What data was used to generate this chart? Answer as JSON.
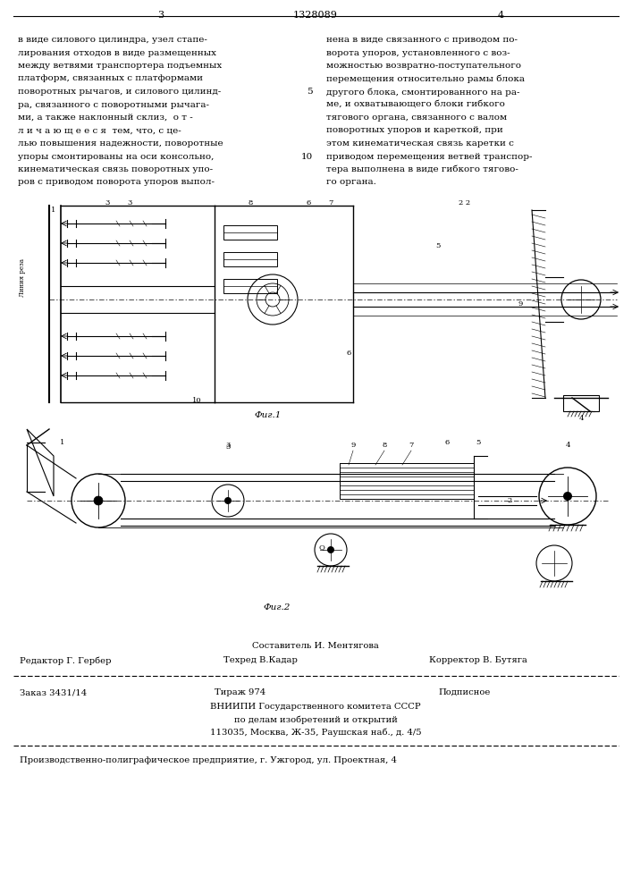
{
  "bg_color": "#ffffff",
  "page_num_left": "3",
  "page_num_center": "1328089",
  "page_num_right": "4",
  "left_col_text": [
    "в виде силового цилиндра, узел стапе-",
    "лирования отходов в виде размещенных",
    "между ветвями транспортера подъемных",
    "платформ, связанных с платформами",
    "поворотных рычагов, и силового цилинд-",
    "ра, связанного с поворотными рычага-",
    "ми, а также наклонный склиз,  о т -",
    "л и ч а ю щ е е с я  тем, что, с це-",
    "лью повышения надежности, поворотные",
    "упоры смонтированы на оси консольно,",
    "кинематическая связь поворотных упо-",
    "ров с приводом поворота упоров выпол-"
  ],
  "line_num_5": "5",
  "line_num_10": "10",
  "right_col_text": [
    "нена в виде связанного с приводом по-",
    "ворота упоров, установленного с воз-",
    "можностью возвратно-поступательного",
    "перемещения относительно рамы блока",
    "другого блока, смонтированного на ра-",
    "ме, и охватывающего блоки гибкого",
    "тягового органа, связанного с валом",
    "поворотных упоров и кареткой, при",
    "этом кинематическая связь каретки с",
    "приводом перемещения ветвей транспор-",
    "тера выполнена в виде гибкого тягово-",
    "го органа."
  ],
  "fig1_caption": "Фиг.1",
  "fig2_caption": "Фиг.2",
  "footer_composer": "Составитель И. Ментягова",
  "footer_editor": "Редактор Г. Гербер",
  "footer_techred": "Техред В.Кадар",
  "footer_corrector": "Корректор В. Бутяга",
  "footer_order": "Заказ 3431/14",
  "footer_tirazh": "Тираж 974",
  "footer_podpisnoe": "Подписное",
  "footer_vniiipi": "ВНИИПИ Государственного комитета СССР",
  "footer_dela": "по делам изобретений и открытий",
  "footer_address": "113035, Москва, Ж-35, Раушская наб., д. 4/5",
  "footer_company": "Производственно-полиграфическое предприятие, г. Ужгород, ул. Проектная, 4",
  "text_font_size": 7.5,
  "footer_font_size": 7.2
}
